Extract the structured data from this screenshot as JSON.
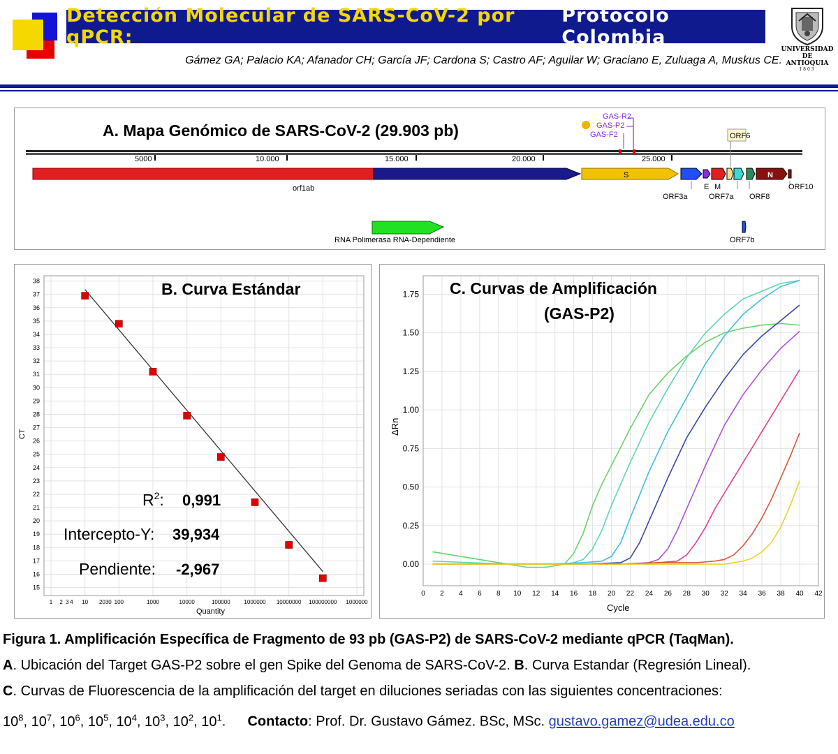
{
  "header": {
    "title_part1": "Detección Molecular de SARS-CoV-2 por qPCR:",
    "title_part2": "Protocolo Colombia",
    "authors": "Gámez GA; Palacio KA; Afanador CH; García JF; Cardona S; Castro AF; Aguilar W; Graciano E, Zuluaga A, Muskus CE.",
    "logo_text_1": "UNIVERSIDAD",
    "logo_text_2": "DE ANTIOQUIA",
    "logo_text_3": "1803"
  },
  "colors": {
    "title_bg": "#0f1a8f",
    "title_yellow": "#f5d800",
    "orf1ab_red": "#e02020",
    "orf1ab_blue": "#1a1a8a",
    "spike_yellow": "#f2c200",
    "rdrp_green": "#22e022",
    "standard_point": "#e00000"
  },
  "panel_a": {
    "title": "A. Mapa Genómico de SARS-CoV-2 (29.903 pb)",
    "ruler_labels": [
      "5000",
      "10.000",
      "15.000",
      "20.000",
      "25.000"
    ],
    "primer_labels": [
      "GAS-R2",
      "GAS-P2",
      "GAS-F2"
    ],
    "genes_above": [
      "S",
      "N"
    ],
    "gene_labels": [
      "orf1ab",
      "ORF3a",
      "E",
      "M",
      "ORF7a",
      "ORF8",
      "ORF10",
      "ORF6",
      "ORF7b"
    ],
    "rdrp_label": "RNA Polimerasa RNA-Dependiente"
  },
  "panel_b": {
    "stats": {
      "r2_label": "R",
      "r2_sup": "2",
      "r2_colon": ":",
      "r2_value": "0,991",
      "intercept_label": "Intercepto-Y:",
      "intercept_value": "39,934",
      "slope_label": "Pendiente:",
      "slope_value": "-2,967"
    }
  },
  "panel_c": {},
  "chart_data": [
    {
      "type": "scatter",
      "title": "B. Curva Estándar",
      "xlabel": "Quantity",
      "ylabel": "CT",
      "x_scale": "log",
      "x_tick_labels": [
        "1",
        "2",
        "3",
        "4",
        "10",
        "2030",
        "100",
        "1000",
        "10000",
        "100000",
        "1000000",
        "10000000",
        "100000000",
        "1000000"
      ],
      "y_ticks": [
        15,
        16,
        17,
        18,
        19,
        20,
        21,
        22,
        23,
        24,
        25,
        26,
        27,
        28,
        29,
        30,
        31,
        32,
        33,
        34,
        35,
        36,
        37,
        38
      ],
      "ylim": [
        14.4,
        38.4
      ],
      "points": [
        {
          "x": 10,
          "y": 36.9
        },
        {
          "x": 100,
          "y": 34.8
        },
        {
          "x": 1000,
          "y": 31.2
        },
        {
          "x": 10000,
          "y": 27.9
        },
        {
          "x": 100000,
          "y": 24.8
        },
        {
          "x": 1000000,
          "y": 21.4
        },
        {
          "x": 10000000,
          "y": 18.2
        },
        {
          "x": 100000000,
          "y": 15.7
        }
      ],
      "regression": {
        "intercept": 39.934,
        "slope": -2.967,
        "r2": 0.991
      },
      "grid": true
    },
    {
      "type": "line",
      "title": "C.  Curvas de Amplificación",
      "subtitle": "(GAS-P2)",
      "xlabel": "Cycle",
      "ylabel": "ΔRn",
      "xlim": [
        0,
        42
      ],
      "ylim": [
        -0.14,
        1.87
      ],
      "x_ticks": [
        0,
        2,
        4,
        6,
        8,
        10,
        12,
        14,
        16,
        18,
        20,
        22,
        24,
        26,
        28,
        30,
        32,
        34,
        36,
        38,
        40,
        42
      ],
      "y_ticks": [
        0.0,
        0.25,
        0.5,
        0.75,
        1.0,
        1.25,
        1.5,
        1.75
      ],
      "y_tick_labels": [
        "0.00",
        "0.25",
        "0.50",
        "0.75",
        "1.00",
        "1.25",
        "1.50",
        "1.75"
      ],
      "grid": true,
      "series": [
        {
          "color": "#6ad26a",
          "x": [
            1,
            3,
            5,
            7,
            9,
            11,
            13,
            14,
            15,
            16,
            17,
            18,
            19,
            20,
            22,
            24,
            26,
            28,
            30,
            32,
            34,
            36,
            38,
            40
          ],
          "y": [
            0.08,
            0.06,
            0.04,
            0.02,
            0.0,
            -0.02,
            -0.02,
            -0.01,
            0.0,
            0.07,
            0.2,
            0.38,
            0.52,
            0.64,
            0.88,
            1.1,
            1.24,
            1.35,
            1.44,
            1.5,
            1.53,
            1.55,
            1.56,
            1.55
          ]
        },
        {
          "color": "#5fd6b0",
          "x": [
            1,
            5,
            9,
            13,
            15,
            16,
            17,
            18,
            19,
            20,
            21,
            22,
            24,
            26,
            28,
            30,
            32,
            34,
            36,
            38,
            40
          ],
          "y": [
            0.02,
            0.01,
            0.0,
            0.0,
            0.0,
            0.01,
            0.03,
            0.1,
            0.22,
            0.38,
            0.52,
            0.66,
            0.92,
            1.14,
            1.34,
            1.5,
            1.62,
            1.72,
            1.77,
            1.82,
            1.84
          ]
        },
        {
          "color": "#3fbfdf",
          "x": [
            1,
            5,
            9,
            13,
            17,
            19,
            20,
            21,
            22,
            23,
            24,
            26,
            28,
            30,
            32,
            34,
            36,
            38,
            40
          ],
          "y": [
            0.0,
            0.0,
            0.0,
            0.0,
            0.01,
            0.02,
            0.05,
            0.14,
            0.3,
            0.45,
            0.6,
            0.86,
            1.08,
            1.3,
            1.48,
            1.62,
            1.72,
            1.8,
            1.84
          ]
        },
        {
          "color": "#3a49a8",
          "x": [
            1,
            5,
            9,
            13,
            17,
            21,
            22,
            23,
            24,
            25,
            26,
            28,
            30,
            32,
            34,
            36,
            38,
            40
          ],
          "y": [
            0.0,
            0.0,
            0.0,
            0.0,
            0.0,
            0.01,
            0.04,
            0.14,
            0.28,
            0.42,
            0.56,
            0.82,
            1.02,
            1.2,
            1.36,
            1.48,
            1.58,
            1.68
          ]
        },
        {
          "color": "#b04fd6",
          "x": [
            1,
            5,
            9,
            13,
            17,
            21,
            24,
            25,
            26,
            27,
            28,
            29,
            30,
            32,
            34,
            36,
            38,
            40
          ],
          "y": [
            0.0,
            0.0,
            0.0,
            0.0,
            0.0,
            0.0,
            0.01,
            0.03,
            0.1,
            0.22,
            0.36,
            0.5,
            0.64,
            0.9,
            1.1,
            1.26,
            1.4,
            1.51
          ]
        },
        {
          "color": "#e0408f",
          "x": [
            1,
            5,
            9,
            13,
            17,
            21,
            25,
            27,
            28,
            29,
            30,
            31,
            32,
            33,
            34,
            36,
            38,
            40
          ],
          "y": [
            0.0,
            0.0,
            0.0,
            0.0,
            0.0,
            0.0,
            0.01,
            0.02,
            0.06,
            0.14,
            0.24,
            0.36,
            0.46,
            0.56,
            0.66,
            0.86,
            1.06,
            1.26
          ]
        },
        {
          "color": "#d75a3a",
          "x": [
            1,
            5,
            9,
            13,
            17,
            21,
            25,
            29,
            31,
            32,
            33,
            34,
            35,
            36,
            37,
            38,
            39,
            40
          ],
          "y": [
            0.0,
            0.0,
            0.0,
            0.0,
            0.0,
            0.0,
            0.01,
            0.01,
            0.02,
            0.03,
            0.06,
            0.12,
            0.2,
            0.3,
            0.42,
            0.56,
            0.7,
            0.85
          ]
        },
        {
          "color": "#e8d230",
          "x": [
            1,
            5,
            9,
            13,
            17,
            21,
            25,
            29,
            32,
            33,
            34,
            35,
            36,
            37,
            38,
            39,
            40
          ],
          "y": [
            0.0,
            0.0,
            0.0,
            0.0,
            0.0,
            0.0,
            0.0,
            0.0,
            0.0,
            0.01,
            0.02,
            0.04,
            0.08,
            0.14,
            0.24,
            0.38,
            0.54
          ]
        }
      ]
    }
  ],
  "caption": {
    "line1": "Figura 1. Amplificación Específica de Fragmento de 93 pb (GAS-P2) de SARS-CoV-2 mediante qPCR (TaqMan).",
    "a_label": "A",
    "a_text": ". Ubicación del Target GAS-P2 sobre el gen Spike del Genoma de SARS-CoV-2. ",
    "b_label": "B",
    "b_text": ". Curva Estandar (Regresión Lineal).",
    "c_label": "C",
    "c_text": ". Curvas de Fluorescencia de la amplificación del target en diluciones seriadas con las siguientes concentraciones:",
    "conc_base": "10",
    "conc_exps": [
      "8",
      "7",
      "6",
      "5",
      "4",
      "3",
      "2",
      "1"
    ],
    "contact_label": "Contacto",
    "contact_text": ": Prof. Dr. Gustavo Gámez. BSc, MSc.",
    "email": "gustavo.gamez@udea.edu.co"
  }
}
